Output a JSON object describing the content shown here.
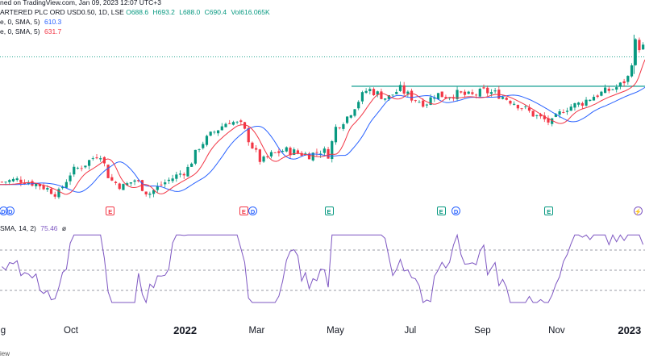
{
  "header": {
    "title": "ARTERED PLC ORD USD0.50, 1D, LSE",
    "published": "ned on TradingView.com, Jan 09, 2023 12:07 UTC+3",
    "ohlc": {
      "o": "O688.6",
      "h": "H693.2",
      "l": "L688.0",
      "c": "C690.4",
      "vol": "Vol616.065K"
    },
    "sma1": {
      "label": "e, 0, SMA, 5)",
      "value": "610.3"
    },
    "sma2": {
      "label": "e, 0, SMA, 5)",
      "value": "631.7"
    },
    "rsi": {
      "label": "SMA, 14, 2)",
      "value": "75.46",
      "extra": "ø"
    }
  },
  "footer": "iew",
  "colors": {
    "up": "#089981",
    "down": "#f23645",
    "sma_fast": "#f23645",
    "sma_slow": "#2962ff",
    "resistance": "#26a69a",
    "rsi": "#7e57c2",
    "event_split": "#2962ff",
    "event_earn": "#089981",
    "event_div": "#f23645"
  },
  "events": [
    {
      "type": "D",
      "pos": 0.005,
      "color": "#2962ff"
    },
    {
      "type": "D",
      "pos": 0.016,
      "color": "#2962ff"
    },
    {
      "type": "E",
      "pos": 0.171,
      "color": "#f23645"
    },
    {
      "type": "E",
      "pos": 0.378,
      "color": "#f23645"
    },
    {
      "type": "D",
      "pos": 0.392,
      "color": "#2962ff"
    },
    {
      "type": "E",
      "pos": 0.51,
      "color": "#089981"
    },
    {
      "type": "E",
      "pos": 0.684,
      "color": "#089981"
    },
    {
      "type": "D",
      "pos": 0.707,
      "color": "#2962ff"
    },
    {
      "type": "E",
      "pos": 0.851,
      "color": "#089981"
    },
    {
      "type": "⚡",
      "pos": 0.989,
      "color": "#7e57c2"
    }
  ],
  "chart_data": {
    "type": "candlestick",
    "x_labels": [
      {
        "text": "g",
        "pos": 0.004,
        "year": false
      },
      {
        "text": "Oct",
        "pos": 0.11,
        "year": false
      },
      {
        "text": "2022",
        "pos": 0.287,
        "year": true
      },
      {
        "text": "Mar",
        "pos": 0.398,
        "year": false
      },
      {
        "text": "May",
        "pos": 0.52,
        "year": false
      },
      {
        "text": "Jul",
        "pos": 0.636,
        "year": false
      },
      {
        "text": "Sep",
        "pos": 0.748,
        "year": false
      },
      {
        "text": "Nov",
        "pos": 0.863,
        "year": false
      },
      {
        "text": "2023",
        "pos": 0.976,
        "year": true
      }
    ],
    "price_path": [
      [
        0.0,
        0.73
      ],
      [
        0.03,
        0.74
      ],
      [
        0.06,
        0.72
      ],
      [
        0.09,
        0.68
      ],
      [
        0.11,
        0.77
      ],
      [
        0.13,
        0.8
      ],
      [
        0.155,
        0.85
      ],
      [
        0.17,
        0.74
      ],
      [
        0.19,
        0.71
      ],
      [
        0.21,
        0.74
      ],
      [
        0.23,
        0.68
      ],
      [
        0.25,
        0.72
      ],
      [
        0.27,
        0.75
      ],
      [
        0.29,
        0.78
      ],
      [
        0.31,
        0.88
      ],
      [
        0.33,
        0.93
      ],
      [
        0.355,
        0.98
      ],
      [
        0.375,
        0.96
      ],
      [
        0.39,
        0.88
      ],
      [
        0.405,
        0.81
      ],
      [
        0.42,
        0.84
      ],
      [
        0.44,
        0.86
      ],
      [
        0.46,
        0.85
      ],
      [
        0.48,
        0.84
      ],
      [
        0.5,
        0.86
      ],
      [
        0.51,
        0.84
      ],
      [
        0.52,
        0.95
      ],
      [
        0.54,
        1.0
      ],
      [
        0.555,
        1.06
      ],
      [
        0.57,
        1.11
      ],
      [
        0.585,
        1.09
      ],
      [
        0.6,
        1.07
      ],
      [
        0.62,
        1.11
      ],
      [
        0.64,
        1.07
      ],
      [
        0.66,
        1.05
      ],
      [
        0.675,
        1.09
      ],
      [
        0.69,
        1.08
      ],
      [
        0.71,
        1.09
      ],
      [
        0.73,
        1.08
      ],
      [
        0.75,
        1.1
      ],
      [
        0.77,
        1.09
      ],
      [
        0.8,
        1.05
      ],
      [
        0.83,
        1.0
      ],
      [
        0.855,
        0.97
      ],
      [
        0.875,
        1.03
      ],
      [
        0.9,
        1.05
      ],
      [
        0.92,
        1.08
      ],
      [
        0.94,
        1.1
      ],
      [
        0.96,
        1.12
      ],
      [
        0.975,
        1.16
      ],
      [
        0.985,
        1.3
      ],
      [
        0.99,
        1.28
      ]
    ],
    "spike_pos": 0.983,
    "resistance": {
      "from": 0.545,
      "to": 1.0,
      "level": 1.12
    },
    "sma_fast_lag": 0.01,
    "sma_slow_lag": 0.025,
    "rsi_levels": [
      70,
      50,
      30
    ],
    "rsi_last": 75.46
  }
}
